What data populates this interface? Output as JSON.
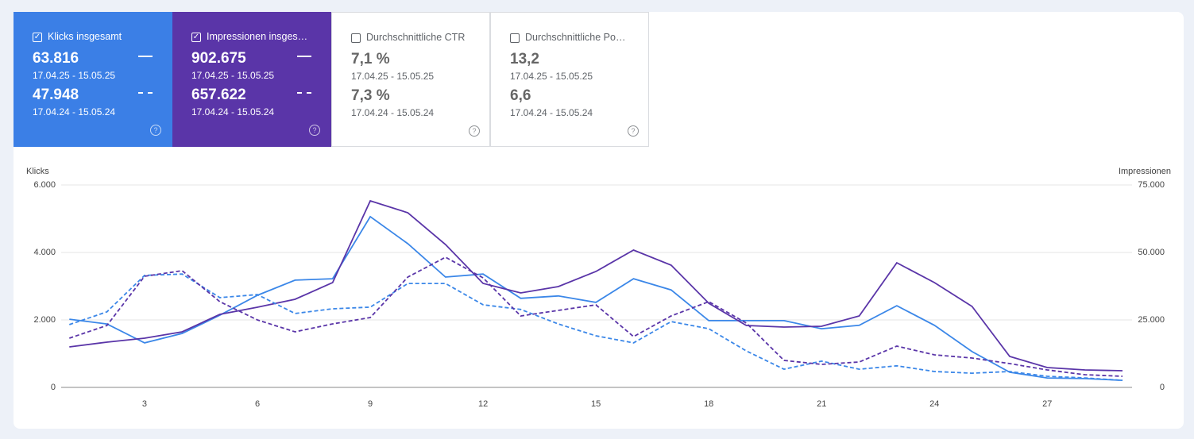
{
  "cards": [
    {
      "label": "Klicks insgesamt",
      "checked": true,
      "value": "63.816",
      "period": "17.04.25 - 15.05.25",
      "compare_value": "47.948",
      "compare_period": "17.04.24 - 15.05.24",
      "color": "#3b7fe6"
    },
    {
      "label": "Impressionen insges…",
      "checked": true,
      "value": "902.675",
      "period": "17.04.25 - 15.05.25",
      "compare_value": "657.622",
      "compare_period": "17.04.24 - 15.05.24",
      "color": "#5a35a8"
    },
    {
      "label": "Durchschnittliche CTR",
      "checked": false,
      "value": "7,1 %",
      "period": "17.04.25 - 15.05.25",
      "compare_value": "7,3 %",
      "compare_period": "17.04.24 - 15.05.24"
    },
    {
      "label": "Durchschnittliche Po…",
      "checked": false,
      "value": "13,2",
      "period": "17.04.25 - 15.05.25",
      "compare_value": "6,6",
      "compare_period": "17.04.24 - 15.05.24"
    }
  ],
  "chart_data": {
    "type": "line",
    "ylabel": "Klicks",
    "y2label": "Impressionen",
    "grid": true,
    "x": [
      1,
      2,
      3,
      4,
      5,
      6,
      7,
      8,
      9,
      10,
      11,
      12,
      13,
      14,
      15,
      16,
      17,
      18,
      19,
      20,
      21,
      22,
      23,
      24,
      25,
      26,
      27,
      28,
      29
    ],
    "xlim": [
      1,
      29
    ],
    "xticks": [
      3,
      6,
      9,
      12,
      15,
      18,
      21,
      24,
      27
    ],
    "ylim": [
      0,
      6000
    ],
    "yticks": [
      0,
      {
        "value": 2000,
        "label": "2.000"
      },
      {
        "value": 4000,
        "label": "4.000"
      },
      {
        "value": 6000,
        "label": "6.000"
      }
    ],
    "y2lim": [
      0,
      75000
    ],
    "y2ticks": [
      0,
      {
        "value": 25000,
        "label": "25.000"
      },
      {
        "value": 50000,
        "label": "50.000"
      },
      {
        "value": 75000,
        "label": "75.000"
      }
    ],
    "series": [
      {
        "color": "#3b87e8",
        "dashed": false,
        "values": [
          2020,
          1880,
          1320,
          1600,
          2140,
          2730,
          3180,
          3220,
          5060,
          4260,
          3270,
          3360,
          2640,
          2710,
          2520,
          3220,
          2890,
          1980,
          1980,
          1980,
          1740,
          1840,
          2420,
          1840,
          1060,
          450,
          280,
          260,
          210
        ]
      },
      {
        "color": "#5a35a8",
        "dashed": false,
        "axis": "y2",
        "values": [
          15000,
          16760,
          18230,
          20590,
          27060,
          29700,
          32650,
          38820,
          69120,
          64700,
          52940,
          38530,
          35000,
          37350,
          42940,
          50880,
          45290,
          31180,
          22940,
          22350,
          22650,
          26470,
          46180,
          38820,
          30000,
          11470,
          7350,
          6470,
          6180
        ]
      },
      {
        "color": "#3b87e8",
        "dashed": true,
        "values": [
          1860,
          2240,
          3320,
          3360,
          2660,
          2750,
          2190,
          2330,
          2380,
          3080,
          3080,
          2450,
          2310,
          1880,
          1530,
          1320,
          1950,
          1740,
          1080,
          540,
          780,
          540,
          640,
          470,
          420,
          470,
          330,
          280,
          210
        ]
      },
      {
        "color": "#5a35a8",
        "dashed": true,
        "axis": "y2",
        "values": [
          18230,
          22940,
          41180,
          43240,
          31760,
          25000,
          20590,
          23530,
          25880,
          40880,
          48240,
          40590,
          26470,
          28530,
          30590,
          18820,
          26470,
          31760,
          23820,
          10000,
          8530,
          9410,
          15290,
          12060,
          10880,
          8820,
          6470,
          4710,
          4120
        ]
      }
    ]
  }
}
